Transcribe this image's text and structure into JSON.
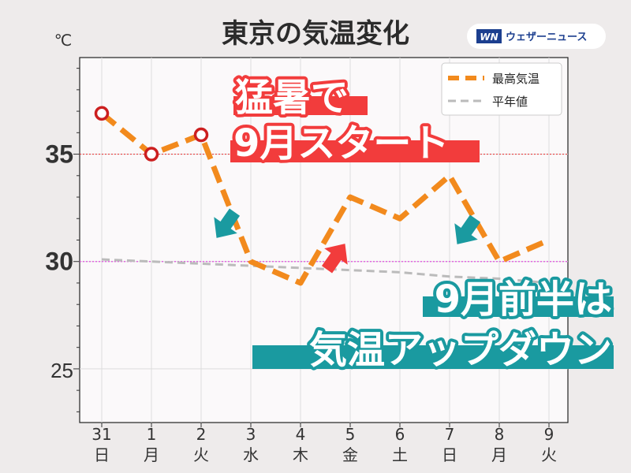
{
  "title": "東京の気温変化",
  "logo": {
    "mark": "WN",
    "text": "ウェザーニュース"
  },
  "unit": "℃",
  "banner": {
    "line1": "猛暑で",
    "line2": "9月スタート",
    "line3": "9月前半は",
    "line4": "気温アップダウン"
  },
  "colors": {
    "max_temp_line": "#f28a1d",
    "normal_line": "#bbbbbb",
    "marker_outline": "#cc1f1f",
    "tick_35": "#f0364a",
    "tick_30": "#f03cf0",
    "ref_35": "#e84040",
    "ref_30": "#e050e0",
    "sunday": "#d62a2a",
    "saturday": "#2d86d6",
    "banner_red": "#f23c3c",
    "banner_teal": "#1a9aa0",
    "arrow_teal": "#1a9aa0",
    "arrow_red": "#f23c3c"
  },
  "chart_data": {
    "type": "line",
    "x": [
      "31",
      "1",
      "2",
      "3",
      "4",
      "5",
      "6",
      "7",
      "8",
      "9"
    ],
    "weekdays": [
      "日",
      "月",
      "火",
      "水",
      "木",
      "金",
      "土",
      "日",
      "月",
      "火"
    ],
    "day_colors": [
      "sunday",
      "normal",
      "normal",
      "normal",
      "normal",
      "normal",
      "saturday",
      "sunday",
      "normal",
      "normal"
    ],
    "series": [
      {
        "name": "最高気温",
        "values": [
          36.9,
          35.0,
          35.9,
          30.0,
          29.0,
          33.0,
          32.0,
          34.0,
          30.0,
          31.0
        ],
        "observed_count": 3
      },
      {
        "name": "平年値",
        "values": [
          30.1,
          30.0,
          29.9,
          29.8,
          29.7,
          29.6,
          29.5,
          29.3,
          29.2,
          29.0
        ]
      }
    ],
    "ylim": [
      22.5,
      39.5
    ],
    "yticks": [
      25,
      30,
      35
    ],
    "reference_lines": [
      35,
      30
    ],
    "legend_position": "top-right",
    "grid": true
  }
}
